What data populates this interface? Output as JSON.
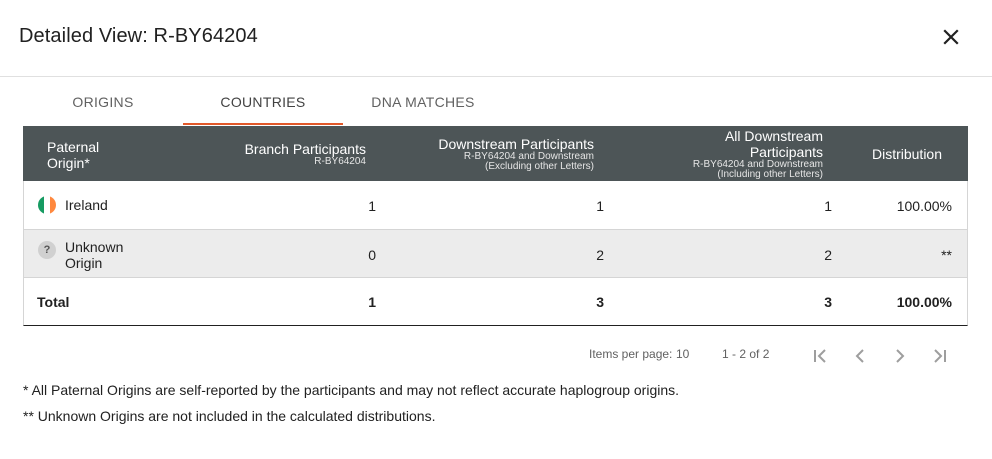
{
  "dialog": {
    "title": "Detailed View: R-BY64204",
    "close_icon": "close-icon"
  },
  "tabs": [
    {
      "label": "ORIGINS",
      "active": false
    },
    {
      "label": "COUNTRIES",
      "active": true
    },
    {
      "label": "DNA MATCHES",
      "active": false
    }
  ],
  "table": {
    "headers": {
      "origin": {
        "label": "Paternal",
        "label2": "Origin*"
      },
      "branch": {
        "label": "Branch Participants",
        "sub": "R-BY64204"
      },
      "downstream": {
        "label": "Downstream Participants",
        "sub1": "R-BY64204 and Downstream",
        "sub2": "(Excluding other Letters)"
      },
      "all_downstream": {
        "label": "All Downstream",
        "label2": "Participants",
        "sub1": "R-BY64204 and Downstream",
        "sub2": "(Including other Letters)"
      },
      "distribution": {
        "label": "Distribution"
      }
    },
    "rows": [
      {
        "icon": "ireland-flag-icon",
        "origin": "Ireland",
        "origin2": "",
        "branch": "1",
        "downstream": "1",
        "all_downstream": "1",
        "distribution": "100.00%"
      },
      {
        "icon": "question-mark-icon",
        "icon_text": "?",
        "origin": "Unknown",
        "origin2": "Origin",
        "branch": "0",
        "downstream": "2",
        "all_downstream": "2",
        "distribution": "**"
      }
    ],
    "total": {
      "label": "Total",
      "branch": "1",
      "downstream": "3",
      "all_downstream": "3",
      "distribution": "100.00%"
    }
  },
  "paginator": {
    "items_per_page_label": "Items per page:",
    "items_per_page": "10",
    "range": "1 - 2 of 2"
  },
  "footnotes": [
    "* All Paternal Origins are self-reported by the participants and may not reflect accurate haplogroup origins.",
    "** Unknown Origins are not included in the calculated distributions."
  ],
  "colors": {
    "accent": "#e2592a",
    "header_bg": "#4d5557",
    "flag_green": "#169b62",
    "flag_white": "#ffffff",
    "flag_orange": "#ff883e"
  }
}
